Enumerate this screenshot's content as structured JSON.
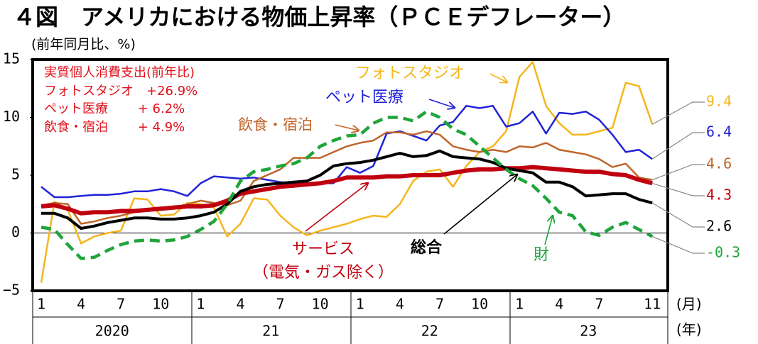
{
  "chart_data": {
    "type": "line",
    "title": "４図　アメリカにおける物価上昇率（ＰＣＥデフレーター）",
    "subtitle": "(前年同月比、%)",
    "categories": [
      "1",
      null,
      null,
      "4",
      null,
      null,
      "7",
      null,
      null,
      "10",
      null,
      null,
      "1",
      null,
      null,
      "4",
      null,
      null,
      "7",
      null,
      null,
      "10",
      null,
      null,
      "1",
      null,
      null,
      "4",
      null,
      null,
      "7",
      null,
      null,
      "10",
      null,
      null,
      "1",
      null,
      null,
      "4",
      null,
      null,
      "7",
      null,
      null,
      null,
      "11"
    ],
    "x_groups": [
      "2020",
      "21",
      "22",
      "23"
    ],
    "x_unit_label": "(月)",
    "group_unit_label": "(年)",
    "ylim": [
      -5,
      15
    ],
    "yticks": [
      {
        "value": -5,
        "label": "−5"
      },
      0,
      5,
      10,
      15
    ],
    "zero_line": true,
    "annotations": [
      "実質個人消費支出(前年比)",
      "フォトスタジオ　+26.9%",
      "ペット医療　　 + 6.2%",
      "飲食・宿泊　　 + 4.9%"
    ],
    "series": [
      {
        "name": "フォトスタジオ",
        "color": "#f5b61c",
        "width": 2.5,
        "dash": false,
        "end_label": "9.4",
        "values": [
          -4.3,
          2.7,
          2.0,
          -0.9,
          -0.3,
          0.0,
          0.2,
          3.0,
          2.9,
          1.5,
          1.6,
          2.6,
          2.5,
          2.2,
          -0.3,
          0.8,
          3.0,
          2.9,
          1.5,
          0.5,
          -0.2,
          0.2,
          0.5,
          0.8,
          1.2,
          1.5,
          1.4,
          2.5,
          4.5,
          5.3,
          5.5,
          4.0,
          5.8,
          7.0,
          7.5,
          8.8,
          13.5,
          14.8,
          11.0,
          9.5,
          8.5,
          8.5,
          8.8,
          9.1,
          13.0,
          12.7,
          9.4
        ]
      },
      {
        "name": "ペット医療",
        "color": "#1f23d6",
        "width": 2.5,
        "dash": false,
        "end_label": "6.4",
        "values": [
          4.0,
          3.1,
          3.1,
          3.2,
          3.3,
          3.3,
          3.4,
          3.6,
          3.6,
          3.8,
          3.6,
          3.2,
          4.3,
          4.9,
          4.8,
          4.7,
          4.8,
          4.6,
          4.4,
          4.3,
          4.2,
          4.3,
          4.3,
          5.7,
          5.2,
          5.8,
          8.6,
          8.8,
          8.4,
          8.0,
          9.3,
          9.6,
          11.0,
          10.8,
          11.0,
          9.2,
          9.5,
          10.5,
          8.6,
          10.4,
          10.3,
          10.5,
          9.8,
          8.5,
          7.0,
          7.2,
          6.4
        ]
      },
      {
        "name": "飲食・宿泊",
        "color": "#c0652a",
        "width": 2.5,
        "dash": false,
        "end_label": "4.6",
        "values": [
          2.4,
          2.6,
          2.5,
          0.8,
          1.0,
          1.3,
          1.5,
          1.8,
          2.0,
          2.2,
          2.2,
          2.5,
          2.8,
          2.6,
          2.4,
          2.8,
          4.5,
          5.0,
          5.5,
          6.5,
          6.5,
          6.5,
          7.0,
          7.5,
          7.8,
          8.0,
          8.7,
          8.7,
          8.5,
          8.8,
          8.5,
          7.5,
          7.2,
          7.0,
          7.2,
          7.0,
          7.5,
          7.4,
          7.8,
          7.2,
          7.0,
          6.8,
          6.4,
          5.7,
          6.0,
          4.8,
          4.6
        ]
      },
      {
        "name": [
          "サービス",
          "（電気・ガス除く）"
        ],
        "color": "#c0000f",
        "width": 6,
        "dash": false,
        "end_label": "4.3",
        "values": [
          2.3,
          2.4,
          2.1,
          1.7,
          1.8,
          1.8,
          1.9,
          1.9,
          2.0,
          2.1,
          2.2,
          2.3,
          2.3,
          2.4,
          2.8,
          3.4,
          3.6,
          3.8,
          4.0,
          4.1,
          4.2,
          4.3,
          4.5,
          4.8,
          4.8,
          4.8,
          4.9,
          4.9,
          5.0,
          5.0,
          5.0,
          5.2,
          5.4,
          5.5,
          5.5,
          5.6,
          5.6,
          5.7,
          5.6,
          5.5,
          5.4,
          5.3,
          5.3,
          5.1,
          5.0,
          4.6,
          4.3
        ]
      },
      {
        "name": "総合",
        "color": "#000000",
        "width": 4,
        "dash": false,
        "end_label": "2.6",
        "values": [
          1.7,
          1.7,
          1.3,
          0.4,
          0.6,
          0.9,
          1.1,
          1.3,
          1.3,
          1.2,
          1.2,
          1.3,
          1.5,
          1.8,
          2.5,
          3.6,
          4.0,
          4.2,
          4.3,
          4.4,
          4.5,
          5.0,
          5.8,
          6.0,
          6.1,
          6.3,
          6.6,
          6.9,
          6.6,
          6.7,
          7.1,
          6.6,
          6.5,
          6.4,
          6.1,
          5.6,
          5.4,
          5.2,
          4.4,
          4.4,
          4.0,
          3.2,
          3.3,
          3.4,
          3.4,
          2.9,
          2.6
        ]
      },
      {
        "name": "財",
        "color": "#1fa53a",
        "width": 4.5,
        "dash": true,
        "end_label": "-0.3",
        "values": [
          0.5,
          0.3,
          -1.0,
          -2.2,
          -2.1,
          -1.5,
          -1.0,
          -0.7,
          -0.6,
          -0.7,
          -0.6,
          -0.3,
          0.3,
          1.0,
          2.5,
          4.5,
          5.3,
          5.5,
          5.8,
          6.0,
          6.5,
          7.5,
          8.0,
          8.4,
          8.5,
          9.5,
          10.0,
          10.0,
          9.7,
          10.5,
          10.0,
          9.0,
          8.5,
          7.5,
          6.5,
          5.5,
          4.7,
          4.1,
          3.0,
          1.8,
          1.5,
          0.1,
          -0.2,
          0.5,
          0.9,
          0.3,
          -0.3
        ]
      }
    ]
  }
}
